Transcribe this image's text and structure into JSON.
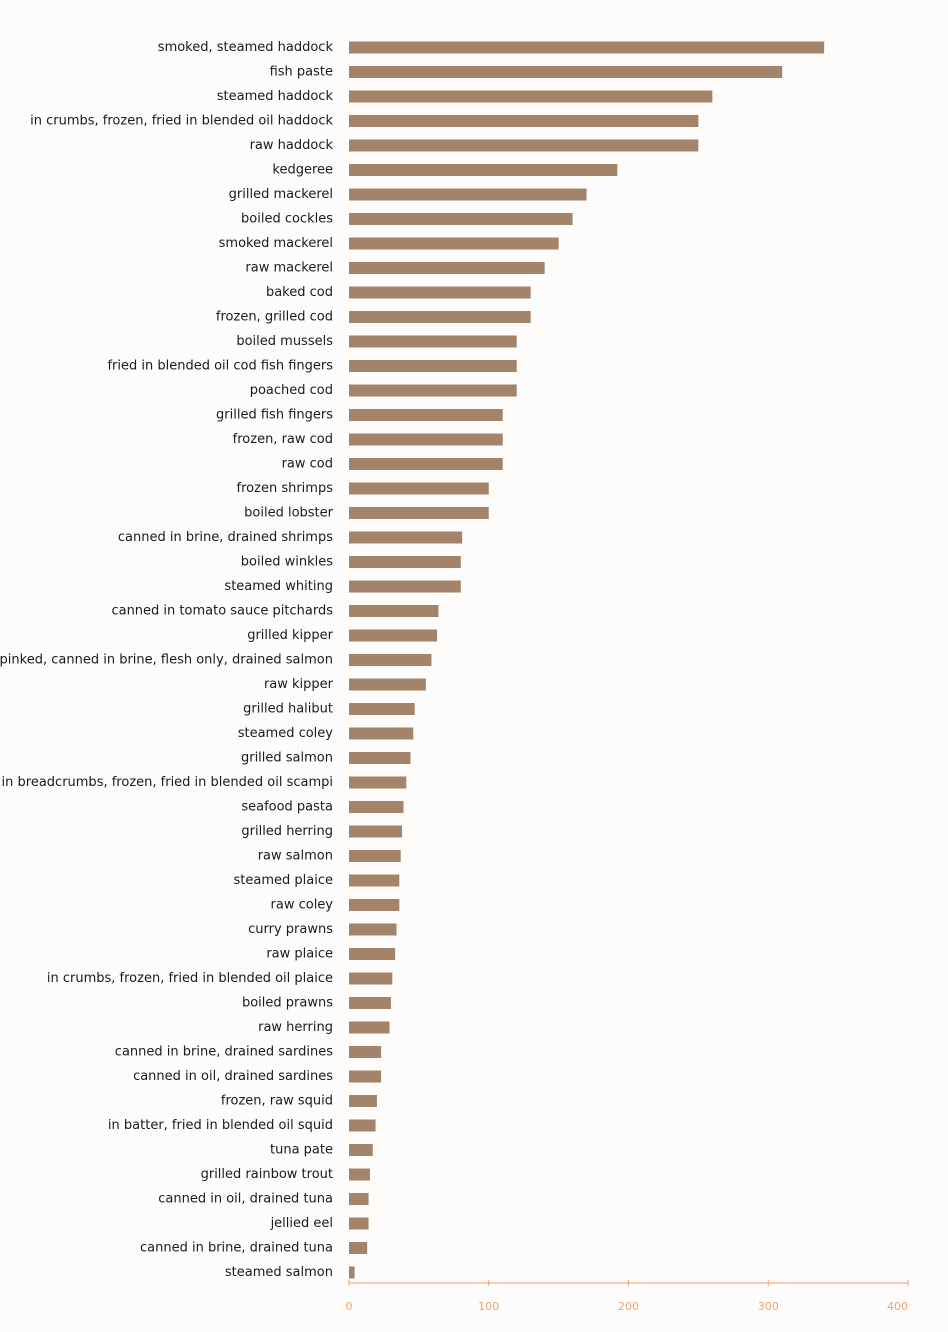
{
  "chart_data": {
    "type": "bar",
    "orientation": "horizontal",
    "title": "",
    "xlabel": "",
    "ylabel": "",
    "xlim": [
      0,
      400
    ],
    "grid": false,
    "legend": "none",
    "bar_color": "#a3836a",
    "axis_color": "#f0a070",
    "x_ticks": [
      "0",
      "100",
      "200",
      "300",
      "400"
    ],
    "x_tick_values": [
      0,
      100,
      200,
      300,
      400
    ],
    "categories": [
      "smoked, steamed haddock",
      "fish paste",
      "steamed haddock",
      "in crumbs, frozen, fried in blended oil haddock",
      "raw haddock",
      "kedgeree",
      "grilled mackerel",
      "boiled cockles",
      "smoked mackerel",
      "raw mackerel",
      "baked cod",
      "frozen, grilled cod",
      "boiled mussels",
      "fried in blended oil cod fish fingers",
      "poached cod",
      "grilled fish fingers",
      "frozen, raw cod",
      "raw cod",
      "frozen shrimps",
      "boiled lobster",
      "canned in brine, drained shrimps",
      "boiled winkles",
      "steamed whiting",
      "canned in tomato sauce pitchards",
      "grilled kipper",
      "pinked, canned in brine, flesh only, drained salmon",
      "raw kipper",
      "grilled halibut",
      "steamed coley",
      "grilled salmon",
      "in breadcrumbs, frozen, fried in blended oil scampi",
      "seafood pasta",
      "grilled herring",
      "raw salmon",
      "steamed plaice",
      "raw coley",
      "curry prawns",
      "raw plaice",
      "in crumbs, frozen, fried in blended oil plaice",
      "boiled prawns",
      "raw herring",
      "canned in brine, drained sardines",
      "canned in oil, drained sardines",
      "frozen, raw squid",
      "in batter, fried in blended oil squid",
      "tuna pate",
      "grilled rainbow trout",
      "canned in oil, drained tuna",
      "jellied eel",
      "canned in brine, drained tuna",
      "steamed salmon"
    ],
    "values": [
      340,
      310,
      260,
      250,
      250,
      192,
      170,
      160,
      150,
      140,
      130,
      130,
      120,
      120,
      120,
      110,
      110,
      110,
      100,
      100,
      81,
      80,
      80,
      64,
      63,
      59,
      55,
      47,
      46,
      44,
      41,
      39,
      38,
      37,
      36,
      36,
      34,
      33,
      31,
      30,
      29,
      23,
      23,
      20,
      19,
      17,
      15,
      14,
      14,
      13,
      4
    ]
  }
}
